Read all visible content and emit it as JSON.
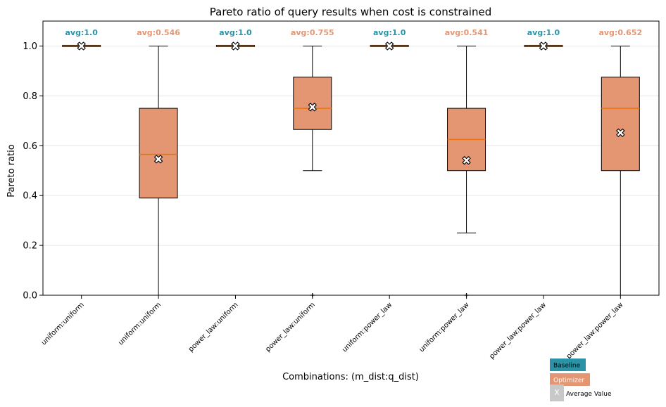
{
  "chart_data": {
    "type": "box",
    "title": "Pareto ratio of query results when cost is constrained",
    "xlabel": "Combinations: (m_dist:q_dist)",
    "ylabel": "Pareto ratio",
    "ylim": [
      0,
      1.1
    ],
    "yticks": [
      0.0,
      0.2,
      0.4,
      0.6,
      0.8,
      1.0
    ],
    "ytick_labels": [
      "0.0",
      "0.2",
      "0.4",
      "0.6",
      "0.8",
      "1.0"
    ],
    "grid": "horizontal",
    "colors": {
      "baseline": "#2a93a6",
      "optimizer": "#e49672",
      "median": "#e8730e",
      "mean_marker_fill": "#ffffff"
    },
    "boxes": [
      {
        "label": "uniform:uniform",
        "group": "baseline",
        "whisker_low": 1.0,
        "q1": 1.0,
        "median": 1.0,
        "q3": 1.0,
        "whisker_high": 1.0,
        "mean": 1.0,
        "avg_label": "avg:1.0",
        "outliers": []
      },
      {
        "label": "uniform:uniform",
        "group": "optimizer",
        "whisker_low": 0.0,
        "q1": 0.39,
        "median": 0.565,
        "q3": 0.75,
        "whisker_high": 1.0,
        "mean": 0.546,
        "avg_label": "avg:0.546",
        "outliers": []
      },
      {
        "label": "power_law:uniform",
        "group": "baseline",
        "whisker_low": 1.0,
        "q1": 1.0,
        "median": 1.0,
        "q3": 1.0,
        "whisker_high": 1.0,
        "mean": 1.0,
        "avg_label": "avg:1.0",
        "outliers": []
      },
      {
        "label": "power_law:uniform",
        "group": "optimizer",
        "whisker_low": 0.5,
        "q1": 0.665,
        "median": 0.75,
        "q3": 0.875,
        "whisker_high": 1.0,
        "mean": 0.755,
        "avg_label": "avg:0.755",
        "outliers": [
          0.0
        ]
      },
      {
        "label": "uniform:power_law",
        "group": "baseline",
        "whisker_low": 1.0,
        "q1": 1.0,
        "median": 1.0,
        "q3": 1.0,
        "whisker_high": 1.0,
        "mean": 1.0,
        "avg_label": "avg:1.0",
        "outliers": []
      },
      {
        "label": "uniform:power_law",
        "group": "optimizer",
        "whisker_low": 0.25,
        "q1": 0.5,
        "median": 0.625,
        "q3": 0.75,
        "whisker_high": 1.0,
        "mean": 0.541,
        "avg_label": "avg:0.541",
        "outliers": [
          0.0
        ]
      },
      {
        "label": "power_law:power_law",
        "group": "baseline",
        "whisker_low": 1.0,
        "q1": 1.0,
        "median": 1.0,
        "q3": 1.0,
        "whisker_high": 1.0,
        "mean": 1.0,
        "avg_label": "avg:1.0",
        "outliers": []
      },
      {
        "label": "power_law:power_law",
        "group": "optimizer",
        "whisker_low": 0.0,
        "q1": 0.5,
        "median": 0.75,
        "q3": 0.875,
        "whisker_high": 1.0,
        "mean": 0.652,
        "avg_label": "avg:0.652",
        "outliers": []
      }
    ],
    "legend": {
      "placement": "bottom-right",
      "entries": [
        {
          "label": "Baseline",
          "group": "baseline"
        },
        {
          "label": "Optimizer",
          "group": "optimizer"
        },
        {
          "label": "Average Value",
          "group": "mean",
          "symbol": "X"
        }
      ]
    }
  }
}
